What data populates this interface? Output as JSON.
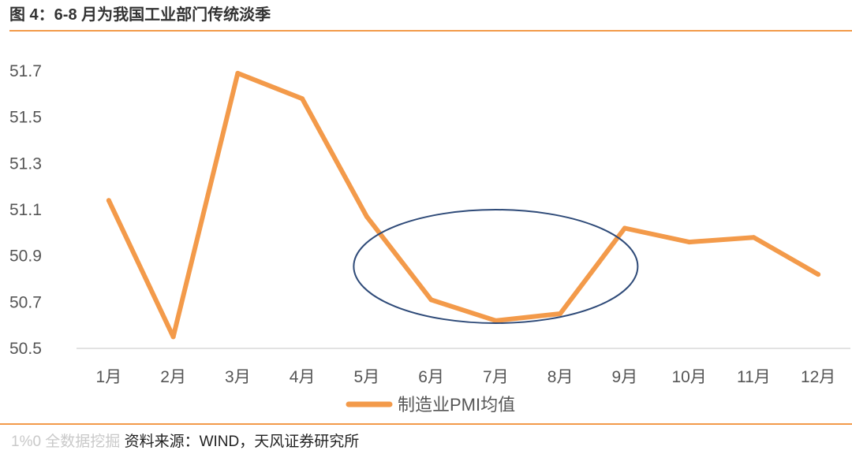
{
  "figure": {
    "title": "图 4：6-8 月为我国工业部门传统淡季",
    "source_watermark": "1%0 全数据挖掘",
    "source": "资料来源：WIND，天风证券研究所"
  },
  "chart_data": {
    "type": "line",
    "title": "",
    "xlabel": "",
    "ylabel": "",
    "categories": [
      "1月",
      "2月",
      "3月",
      "4月",
      "5月",
      "6月",
      "7月",
      "8月",
      "9月",
      "10月",
      "11月",
      "12月"
    ],
    "series": [
      {
        "name": "制造业PMI均值",
        "color": "#f39a4a",
        "values": [
          51.14,
          50.55,
          51.69,
          51.58,
          51.07,
          50.71,
          50.62,
          50.65,
          51.02,
          50.96,
          50.98,
          50.82
        ]
      }
    ],
    "ylim": [
      50.5,
      51.7
    ],
    "yticks": [
      "50.5",
      "50.7",
      "50.9",
      "51.1",
      "51.3",
      "51.5",
      "51.7"
    ],
    "grid": false,
    "legend": "bottom-center",
    "annotation": {
      "shape": "ellipse",
      "color": "#2e4a78",
      "highlights": [
        "6月",
        "7月",
        "8月"
      ]
    }
  }
}
